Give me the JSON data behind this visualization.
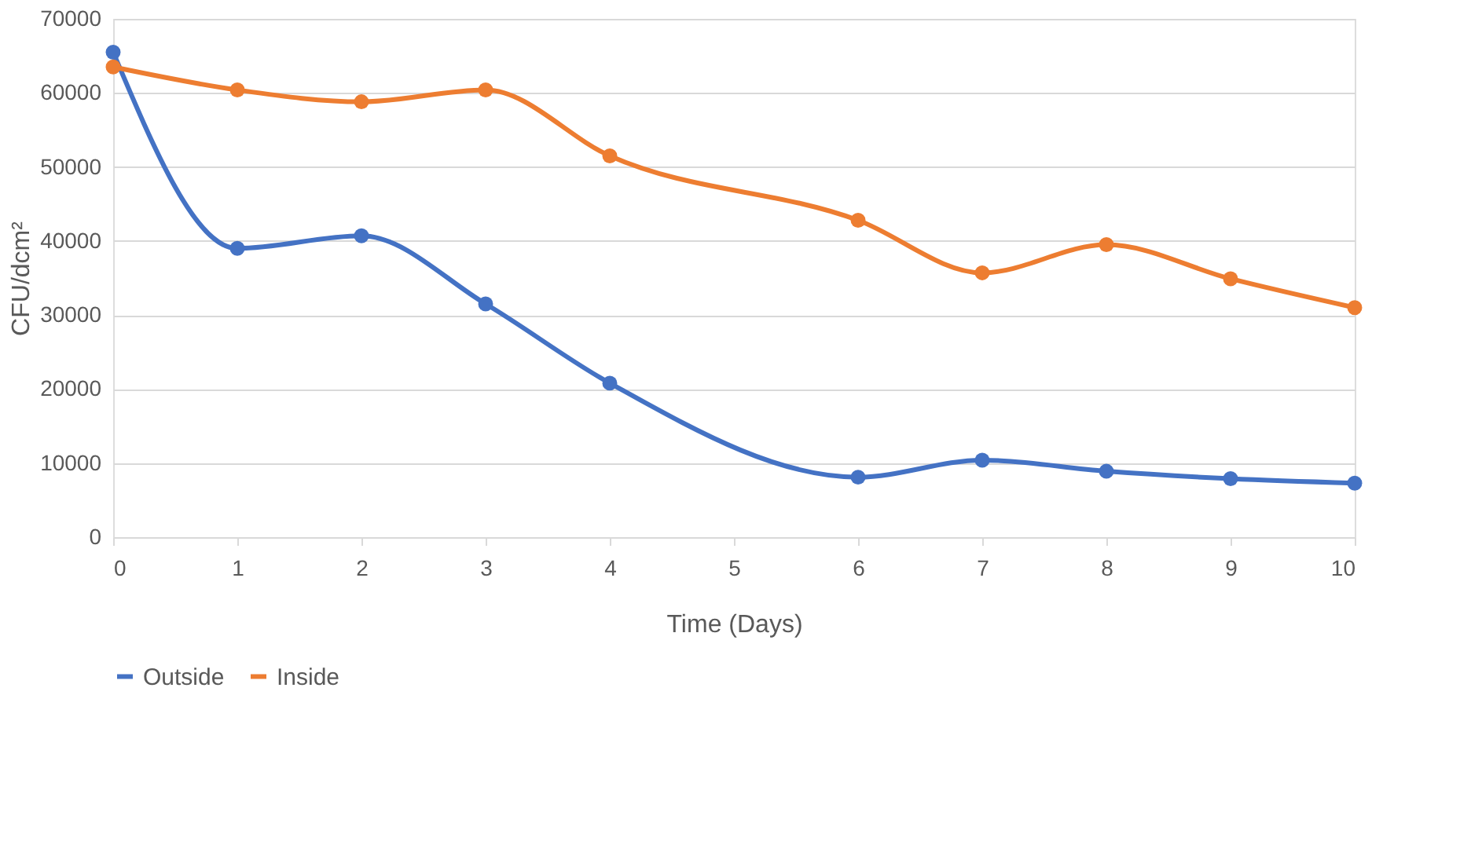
{
  "chart_data": {
    "type": "line",
    "xlabel": "Time (Days)",
    "ylabel": "CFU/dcm²",
    "x": [
      0,
      1,
      2,
      3,
      4,
      6,
      7,
      8,
      9,
      10
    ],
    "series": [
      {
        "name": "Outside",
        "color": "#4472c4",
        "values": [
          65500,
          39000,
          40700,
          31500,
          20800,
          8100,
          10400,
          8900,
          7900,
          7300
        ]
      },
      {
        "name": "Inside",
        "color": "#ed7d31",
        "values": [
          63500,
          60400,
          58800,
          60400,
          51500,
          42800,
          35700,
          39500,
          34900,
          31000
        ]
      }
    ],
    "xlim": [
      0,
      10
    ],
    "xticks": [
      0,
      1,
      2,
      3,
      4,
      5,
      6,
      7,
      8,
      9,
      10
    ],
    "ylim": [
      0,
      70000
    ],
    "yticks": [
      0,
      10000,
      20000,
      30000,
      40000,
      50000,
      60000,
      70000
    ],
    "grid": "y",
    "legend": "bottom",
    "marker": "circle",
    "line_style": "solid"
  }
}
